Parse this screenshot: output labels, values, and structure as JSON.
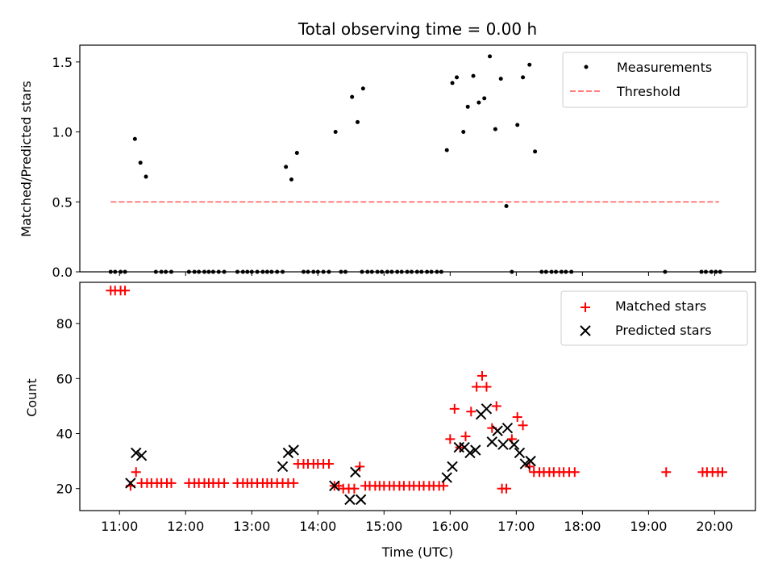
{
  "title": "Total observing time = 0.00 h",
  "colors": {
    "measure": "#000000",
    "threshold": "#ff0000",
    "matched": "#ff0000",
    "predicted": "#000000"
  },
  "chart_data": [
    {
      "type": "scatter",
      "ylabel": "Matched/Predicted stars",
      "xlim": [
        "10:24",
        "20:37"
      ],
      "ylim": [
        0,
        1.62
      ],
      "yticks": [
        "0.0",
        "0.5",
        "1.0",
        "1.5"
      ],
      "legend": {
        "position": "upper right",
        "entries": [
          {
            "label": "Measurements",
            "marker": "dot"
          },
          {
            "label": "Threshold",
            "marker": "dashed-line"
          }
        ]
      },
      "threshold": {
        "name": "Threshold",
        "x": [
          "10:52",
          "20:04"
        ],
        "y": 0.5,
        "alpha": 0.5
      },
      "series": [
        {
          "name": "Measurements",
          "marker": "dot",
          "points": [
            [
              "10:52",
              0
            ],
            [
              "10:56",
              0
            ],
            [
              "11:01",
              0
            ],
            [
              "11:05",
              0
            ],
            [
              "11:14",
              0.95
            ],
            [
              "11:19",
              0.78
            ],
            [
              "11:24",
              0.68
            ],
            [
              "11:33",
              0
            ],
            [
              "11:38",
              0
            ],
            [
              "11:42",
              0
            ],
            [
              "11:47",
              0
            ],
            [
              "12:03",
              0
            ],
            [
              "12:08",
              0
            ],
            [
              "12:12",
              0
            ],
            [
              "12:17",
              0
            ],
            [
              "12:21",
              0
            ],
            [
              "12:25",
              0
            ],
            [
              "12:30",
              0
            ],
            [
              "12:35",
              0
            ],
            [
              "12:47",
              0
            ],
            [
              "12:52",
              0
            ],
            [
              "12:56",
              0
            ],
            [
              "13:00",
              0
            ],
            [
              "13:05",
              0
            ],
            [
              "13:10",
              0
            ],
            [
              "13:14",
              0
            ],
            [
              "13:18",
              0
            ],
            [
              "13:23",
              0
            ],
            [
              "13:28",
              0
            ],
            [
              "13:31",
              0.75
            ],
            [
              "13:36",
              0.66
            ],
            [
              "13:41",
              0.85
            ],
            [
              "13:47",
              0
            ],
            [
              "13:51",
              0
            ],
            [
              "13:56",
              0
            ],
            [
              "14:00",
              0
            ],
            [
              "14:05",
              0
            ],
            [
              "14:10",
              0
            ],
            [
              "14:16",
              1.0
            ],
            [
              "14:21",
              0
            ],
            [
              "14:25",
              0
            ],
            [
              "14:31",
              1.25
            ],
            [
              "14:36",
              1.07
            ],
            [
              "14:41",
              1.31
            ],
            [
              "14:40",
              0
            ],
            [
              "14:45",
              0
            ],
            [
              "14:49",
              0
            ],
            [
              "14:54",
              0
            ],
            [
              "14:58",
              0
            ],
            [
              "15:03",
              0
            ],
            [
              "15:07",
              0
            ],
            [
              "15:12",
              0
            ],
            [
              "15:16",
              0
            ],
            [
              "15:21",
              0
            ],
            [
              "15:25",
              0
            ],
            [
              "15:30",
              0
            ],
            [
              "15:34",
              0
            ],
            [
              "15:39",
              0
            ],
            [
              "15:43",
              0
            ],
            [
              "15:48",
              0
            ],
            [
              "15:52",
              0
            ],
            [
              "15:57",
              0.87
            ],
            [
              "16:02",
              1.35
            ],
            [
              "16:06",
              1.39
            ],
            [
              "16:12",
              1.0
            ],
            [
              "16:16",
              1.18
            ],
            [
              "16:21",
              1.4
            ],
            [
              "16:26",
              1.21
            ],
            [
              "16:31",
              1.24
            ],
            [
              "16:36",
              1.54
            ],
            [
              "16:41",
              1.02
            ],
            [
              "16:46",
              1.38
            ],
            [
              "16:51",
              0.47
            ],
            [
              "16:56",
              0
            ],
            [
              "17:01",
              1.05
            ],
            [
              "17:06",
              1.39
            ],
            [
              "17:12",
              1.48
            ],
            [
              "17:17",
              0.86
            ],
            [
              "17:23",
              0
            ],
            [
              "17:27",
              0
            ],
            [
              "17:32",
              0
            ],
            [
              "17:36",
              0
            ],
            [
              "17:41",
              0
            ],
            [
              "17:45",
              0
            ],
            [
              "17:50",
              0
            ],
            [
              "19:15",
              0
            ],
            [
              "19:48",
              0
            ],
            [
              "19:52",
              0
            ],
            [
              "19:57",
              0
            ],
            [
              "20:01",
              0
            ],
            [
              "20:05",
              0
            ]
          ]
        }
      ]
    },
    {
      "type": "scatter",
      "xlabel": "Time (UTC)",
      "ylabel": "Count",
      "xlim": [
        "10:24",
        "20:37"
      ],
      "ylim": [
        12,
        95
      ],
      "xticks": [
        "11:00",
        "12:00",
        "13:00",
        "14:00",
        "15:00",
        "16:00",
        "17:00",
        "18:00",
        "19:00",
        "20:00"
      ],
      "yticks": [
        "20",
        "40",
        "60",
        "80"
      ],
      "legend": {
        "position": "upper right",
        "entries": [
          {
            "label": "Matched stars",
            "marker": "plus"
          },
          {
            "label": "Predicted stars",
            "marker": "x"
          }
        ]
      },
      "series": [
        {
          "name": "Matched stars",
          "marker": "plus",
          "points": [
            [
              "10:52",
              92
            ],
            [
              "10:56",
              92
            ],
            [
              "11:01",
              92
            ],
            [
              "11:05",
              92
            ],
            [
              "11:10",
              21
            ],
            [
              "11:15",
              26
            ],
            [
              "11:20",
              22
            ],
            [
              "11:25",
              22
            ],
            [
              "11:29",
              22
            ],
            [
              "11:34",
              22
            ],
            [
              "11:38",
              22
            ],
            [
              "11:43",
              22
            ],
            [
              "11:47",
              22
            ],
            [
              "12:03",
              22
            ],
            [
              "12:08",
              22
            ],
            [
              "12:12",
              22
            ],
            [
              "12:17",
              22
            ],
            [
              "12:21",
              22
            ],
            [
              "12:25",
              22
            ],
            [
              "12:30",
              22
            ],
            [
              "12:35",
              22
            ],
            [
              "12:47",
              22
            ],
            [
              "12:52",
              22
            ],
            [
              "12:56",
              22
            ],
            [
              "13:00",
              22
            ],
            [
              "13:05",
              22
            ],
            [
              "13:10",
              22
            ],
            [
              "13:14",
              22
            ],
            [
              "13:18",
              22
            ],
            [
              "13:23",
              22
            ],
            [
              "13:28",
              22
            ],
            [
              "13:33",
              22
            ],
            [
              "13:38",
              22
            ],
            [
              "13:42",
              29
            ],
            [
              "13:47",
              29
            ],
            [
              "13:51",
              29
            ],
            [
              "13:56",
              29
            ],
            [
              "14:00",
              29
            ],
            [
              "14:05",
              29
            ],
            [
              "14:10",
              29
            ],
            [
              "14:15",
              21
            ],
            [
              "14:19",
              21
            ],
            [
              "14:23",
              20
            ],
            [
              "14:28",
              20
            ],
            [
              "14:33",
              20
            ],
            [
              "14:38",
              28
            ],
            [
              "14:43",
              21
            ],
            [
              "14:47",
              21
            ],
            [
              "14:52",
              21
            ],
            [
              "14:56",
              21
            ],
            [
              "15:00",
              21
            ],
            [
              "15:05",
              21
            ],
            [
              "15:09",
              21
            ],
            [
              "15:14",
              21
            ],
            [
              "15:18",
              21
            ],
            [
              "15:23",
              21
            ],
            [
              "15:27",
              21
            ],
            [
              "15:32",
              21
            ],
            [
              "15:36",
              21
            ],
            [
              "15:41",
              21
            ],
            [
              "15:45",
              21
            ],
            [
              "15:50",
              21
            ],
            [
              "15:54",
              21
            ],
            [
              "16:00",
              38
            ],
            [
              "16:04",
              49
            ],
            [
              "16:09",
              35
            ],
            [
              "16:14",
              39
            ],
            [
              "16:19",
              48
            ],
            [
              "16:24",
              57
            ],
            [
              "16:29",
              61
            ],
            [
              "16:33",
              57
            ],
            [
              "16:38",
              42
            ],
            [
              "16:42",
              50
            ],
            [
              "16:47",
              20
            ],
            [
              "16:51",
              20
            ],
            [
              "16:56",
              38
            ],
            [
              "17:01",
              46
            ],
            [
              "17:06",
              43
            ],
            [
              "17:12",
              28
            ],
            [
              "17:16",
              26
            ],
            [
              "17:21",
              26
            ],
            [
              "17:25",
              26
            ],
            [
              "17:30",
              26
            ],
            [
              "17:34",
              26
            ],
            [
              "17:39",
              26
            ],
            [
              "17:43",
              26
            ],
            [
              "17:48",
              26
            ],
            [
              "17:53",
              26
            ],
            [
              "19:16",
              26
            ],
            [
              "19:49",
              26
            ],
            [
              "19:53",
              26
            ],
            [
              "19:58",
              26
            ],
            [
              "20:03",
              26
            ],
            [
              "20:07",
              26
            ]
          ]
        },
        {
          "name": "Predicted stars",
          "marker": "x",
          "points": [
            [
              "11:10",
              22
            ],
            [
              "11:15",
              33
            ],
            [
              "11:20",
              32
            ],
            [
              "13:28",
              28
            ],
            [
              "13:33",
              33
            ],
            [
              "13:38",
              34
            ],
            [
              "14:15",
              21
            ],
            [
              "14:29",
              16
            ],
            [
              "14:34",
              26
            ],
            [
              "14:39",
              16
            ],
            [
              "15:57",
              24
            ],
            [
              "16:02",
              28
            ],
            [
              "16:08",
              35
            ],
            [
              "16:13",
              35
            ],
            [
              "16:18",
              33
            ],
            [
              "16:23",
              34
            ],
            [
              "16:28",
              47
            ],
            [
              "16:33",
              49
            ],
            [
              "16:38",
              37
            ],
            [
              "16:43",
              41
            ],
            [
              "16:48",
              36
            ],
            [
              "16:52",
              42
            ],
            [
              "16:58",
              36
            ],
            [
              "17:03",
              33
            ],
            [
              "17:08",
              29
            ],
            [
              "17:13",
              30
            ]
          ]
        }
      ]
    }
  ]
}
